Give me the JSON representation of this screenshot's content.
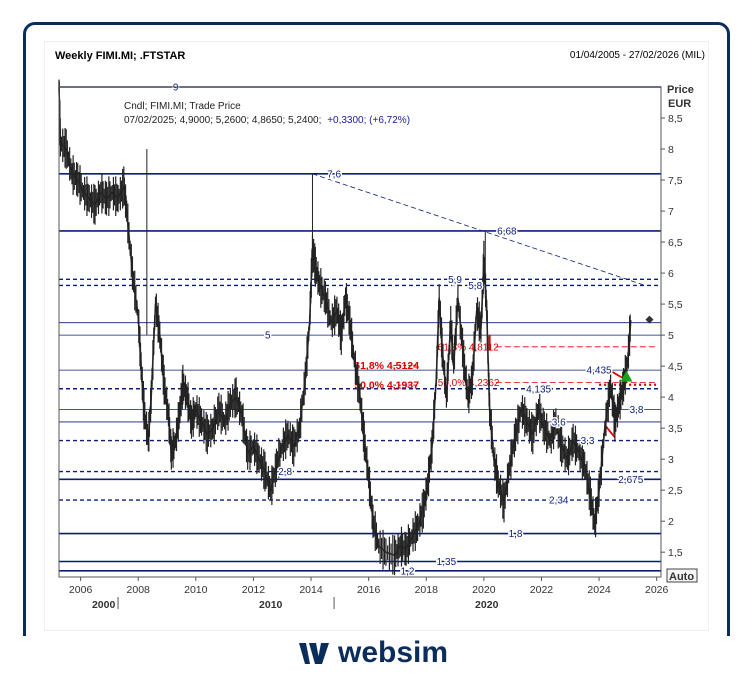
{
  "header": {
    "title": "Weekly FIMI.MI; .FTSTAR",
    "range": "01/04/2005 - 27/02/2026 (MIL)"
  },
  "legend": {
    "line1": "Cndl; FIMI.MI; Trade Price",
    "line2_prefix": "07/02/2025; 4,9000; 5,2600; 4,8650; 5,2400;",
    "line2_change": "+0,3300; (+6,72%)"
  },
  "axis": {
    "price_label": "Price",
    "currency_label": "EUR",
    "auto_button": "Auto",
    "y_ticks": [
      "1,5",
      "2",
      "2,5",
      "3",
      "3,5",
      "4",
      "4,5",
      "5",
      "5,5",
      "6",
      "6,5",
      "7",
      "7,5",
      "8",
      "8,5"
    ],
    "x_ticks": [
      "2006",
      "2008",
      "2010",
      "2012",
      "2014",
      "2016",
      "2018",
      "2020",
      "2022",
      "2024",
      "2026"
    ],
    "secondary_ticks": [
      "2000",
      "2010",
      "2020"
    ]
  },
  "brand": {
    "name": "websim"
  },
  "colors": {
    "line": "#0b1d78",
    "price": "#333333",
    "fib": "#e00000",
    "accent": "#0b2d5b",
    "arrow": "#1aa01a"
  },
  "chart_data": {
    "type": "candlestick-line",
    "ylim": [
      1.1,
      9.0
    ],
    "xlim": [
      2005.25,
      2026.15
    ],
    "series": [
      {
        "points": [
          [
            2005.25,
            9.0
          ],
          [
            2005.3,
            8.1
          ],
          [
            2005.5,
            8.0
          ],
          [
            2005.7,
            7.6
          ],
          [
            2005.9,
            7.5
          ],
          [
            2006.1,
            7.3
          ],
          [
            2006.3,
            7.2
          ],
          [
            2006.5,
            7.1
          ],
          [
            2006.7,
            7.3
          ],
          [
            2006.9,
            7.2
          ],
          [
            2007.1,
            7.3
          ],
          [
            2007.3,
            7.2
          ],
          [
            2007.5,
            7.4
          ],
          [
            2007.6,
            7.0
          ],
          [
            2007.8,
            6.0
          ],
          [
            2008.0,
            5.3
          ],
          [
            2008.1,
            4.5
          ],
          [
            2008.2,
            3.8
          ],
          [
            2008.35,
            3.3
          ],
          [
            2008.45,
            4.0
          ],
          [
            2008.6,
            5.5
          ],
          [
            2008.75,
            5.0
          ],
          [
            2008.9,
            4.2
          ],
          [
            2009.05,
            3.7
          ],
          [
            2009.15,
            3.1
          ],
          [
            2009.3,
            3.3
          ],
          [
            2009.45,
            3.8
          ],
          [
            2009.55,
            4.2
          ],
          [
            2009.7,
            4.0
          ],
          [
            2009.85,
            3.6
          ],
          [
            2010.0,
            3.8
          ],
          [
            2010.2,
            3.6
          ],
          [
            2010.4,
            3.4
          ],
          [
            2010.6,
            3.5
          ],
          [
            2010.8,
            3.8
          ],
          [
            2011.0,
            3.6
          ],
          [
            2011.2,
            3.9
          ],
          [
            2011.4,
            4.0
          ],
          [
            2011.6,
            3.7
          ],
          [
            2011.8,
            3.1
          ],
          [
            2012.0,
            3.2
          ],
          [
            2012.2,
            3.0
          ],
          [
            2012.4,
            2.8
          ],
          [
            2012.6,
            2.5
          ],
          [
            2012.8,
            2.9
          ],
          [
            2013.0,
            3.2
          ],
          [
            2013.2,
            3.4
          ],
          [
            2013.4,
            3.2
          ],
          [
            2013.6,
            3.5
          ],
          [
            2013.8,
            4.3
          ],
          [
            2013.95,
            5.2
          ],
          [
            2014.05,
            6.4
          ],
          [
            2014.15,
            6.1
          ],
          [
            2014.3,
            5.8
          ],
          [
            2014.5,
            5.6
          ],
          [
            2014.7,
            5.2
          ],
          [
            2014.9,
            5.4
          ],
          [
            2015.05,
            5.0
          ],
          [
            2015.2,
            5.6
          ],
          [
            2015.35,
            5.2
          ],
          [
            2015.5,
            4.6
          ],
          [
            2015.7,
            4.0
          ],
          [
            2015.85,
            3.3
          ],
          [
            2016.0,
            2.7
          ],
          [
            2016.15,
            2.0
          ],
          [
            2016.35,
            1.6
          ],
          [
            2016.6,
            1.5
          ],
          [
            2016.9,
            1.45
          ],
          [
            2017.1,
            1.6
          ],
          [
            2017.3,
            1.55
          ],
          [
            2017.5,
            1.75
          ],
          [
            2017.7,
            1.9
          ],
          [
            2017.9,
            2.2
          ],
          [
            2018.05,
            2.6
          ],
          [
            2018.2,
            3.2
          ],
          [
            2018.35,
            4.3
          ],
          [
            2018.45,
            5.6
          ],
          [
            2018.55,
            4.8
          ],
          [
            2018.7,
            4.0
          ],
          [
            2018.85,
            5.2
          ],
          [
            2018.95,
            4.5
          ],
          [
            2019.1,
            5.6
          ],
          [
            2019.3,
            4.6
          ],
          [
            2019.45,
            4.0
          ],
          [
            2019.6,
            4.3
          ],
          [
            2019.75,
            5.4
          ],
          [
            2019.9,
            5.1
          ],
          [
            2020.0,
            6.2
          ],
          [
            2020.1,
            5.4
          ],
          [
            2020.2,
            3.8
          ],
          [
            2020.35,
            3.0
          ],
          [
            2020.5,
            2.6
          ],
          [
            2020.7,
            2.3
          ],
          [
            2020.9,
            2.9
          ],
          [
            2021.1,
            3.4
          ],
          [
            2021.3,
            3.8
          ],
          [
            2021.5,
            3.6
          ],
          [
            2021.7,
            3.4
          ],
          [
            2021.9,
            3.8
          ],
          [
            2022.1,
            3.5
          ],
          [
            2022.3,
            3.3
          ],
          [
            2022.5,
            3.6
          ],
          [
            2022.7,
            3.2
          ],
          [
            2022.9,
            3.0
          ],
          [
            2023.1,
            3.3
          ],
          [
            2023.3,
            3.1
          ],
          [
            2023.5,
            2.9
          ],
          [
            2023.7,
            2.4
          ],
          [
            2023.85,
            1.95
          ],
          [
            2024.0,
            2.5
          ],
          [
            2024.2,
            3.5
          ],
          [
            2024.4,
            4.2
          ],
          [
            2024.55,
            3.6
          ],
          [
            2024.7,
            3.9
          ],
          [
            2024.85,
            4.2
          ],
          [
            2025.0,
            4.6
          ],
          [
            2025.1,
            5.24
          ]
        ]
      }
    ],
    "levels": [
      {
        "value": 9.0,
        "label": "9",
        "style": "solid"
      },
      {
        "value": 7.6,
        "label": "7,6",
        "style": "solid"
      },
      {
        "value": 6.68,
        "label": "6,68",
        "style": "solid"
      },
      {
        "value": 5.9,
        "label": "5,9",
        "style": "dashed"
      },
      {
        "value": 5.8,
        "label": "5,8",
        "style": "dashed"
      },
      {
        "value": 5.2,
        "label": "",
        "style": "thin"
      },
      {
        "value": 5.0,
        "label": "5",
        "style": "thin"
      },
      {
        "value": 4.435,
        "label": "4,435",
        "style": "thin"
      },
      {
        "value": 4.135,
        "label": "4,135",
        "style": "dashed"
      },
      {
        "value": 3.8,
        "label": "3,8",
        "style": "thin"
      },
      {
        "value": 3.6,
        "label": "3,6",
        "style": "thin"
      },
      {
        "value": 3.3,
        "label": "3,3",
        "style": "dashed"
      },
      {
        "value": 2.8,
        "label": "2,8",
        "style": "dashed"
      },
      {
        "value": 2.675,
        "label": "2,675",
        "style": "solid"
      },
      {
        "value": 2.34,
        "label": "2,34",
        "style": "dashed"
      },
      {
        "value": 1.8,
        "label": "1,8",
        "style": "solid"
      },
      {
        "value": 1.35,
        "label": "1,35",
        "style": "solid"
      },
      {
        "value": 1.2,
        "label": "1,2",
        "style": "solid"
      }
    ],
    "level_label_x": {
      "9": 2009.3,
      "7,6": 2014.8,
      "6,68": 2020.8,
      "5,9": 2019.0,
      "5,8": 2019.7,
      "5": 2012.5,
      "4,435": 2024.0,
      "4,135": 2021.9,
      "3,8": 2025.3,
      "3,6": 2022.6,
      "3,3": 2023.6,
      "2,8": 2013.1,
      "2,675": 2025.1,
      "2,34": 2022.6,
      "1,8": 2021.1,
      "1,35": 2018.7,
      "1,2": 2017.35
    },
    "fib_labels": [
      {
        "x": 2015.5,
        "y": 4.5124,
        "text": "61,8% 4,5124",
        "bold": true
      },
      {
        "x": 2015.5,
        "y": 4.1937,
        "text": "50,0% 4,1937",
        "bold": true
      },
      {
        "x": 2018.4,
        "y": 4.8112,
        "text": "61,8% 4,8112",
        "bold": false
      },
      {
        "x": 2018.4,
        "y": 4.2362,
        "text": "50,0% 4,2362",
        "bold": false
      }
    ],
    "trendline": {
      "from": [
        2014.05,
        7.6
      ],
      "to": [
        2025.6,
        5.8
      ]
    },
    "marker": {
      "x": 2025.75,
      "y": 5.25
    }
  }
}
